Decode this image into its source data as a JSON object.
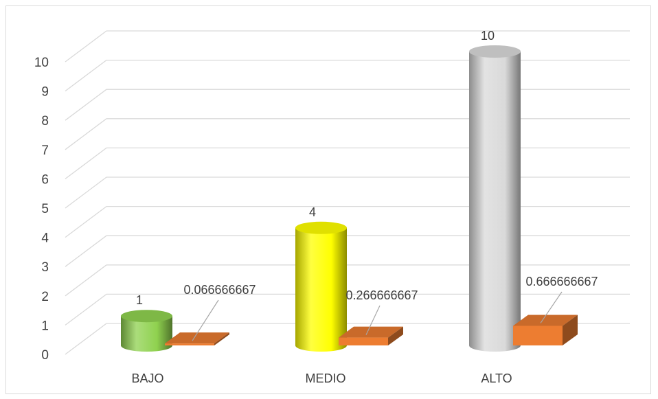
{
  "chart_data": {
    "type": "bar",
    "categories": [
      "BAJO",
      "MEDIO",
      "ALTO"
    ],
    "series": [
      {
        "values": [
          1,
          4,
          10
        ],
        "data_labels": [
          "1",
          "4",
          "10"
        ],
        "point_colors": [
          "#8fd14f",
          "#ffff00",
          "#d9d9d9"
        ],
        "shape": "cylinder"
      },
      {
        "values": [
          0.066666667,
          0.266666667,
          0.666666667
        ],
        "data_labels": [
          "0.066666667",
          "0.266666667",
          "0.666666667"
        ],
        "color": "#ed7d31",
        "shape": "box"
      }
    ],
    "yticks": [
      "0",
      "1",
      "2",
      "3",
      "4",
      "5",
      "6",
      "7",
      "8",
      "9",
      "10"
    ],
    "ylim": [
      0,
      10
    ],
    "grid": true,
    "legend": "none",
    "style": "3d",
    "colors": {
      "gridline": "#d9d9d9",
      "text": "#404040",
      "leader": "#a6a6a6"
    }
  }
}
